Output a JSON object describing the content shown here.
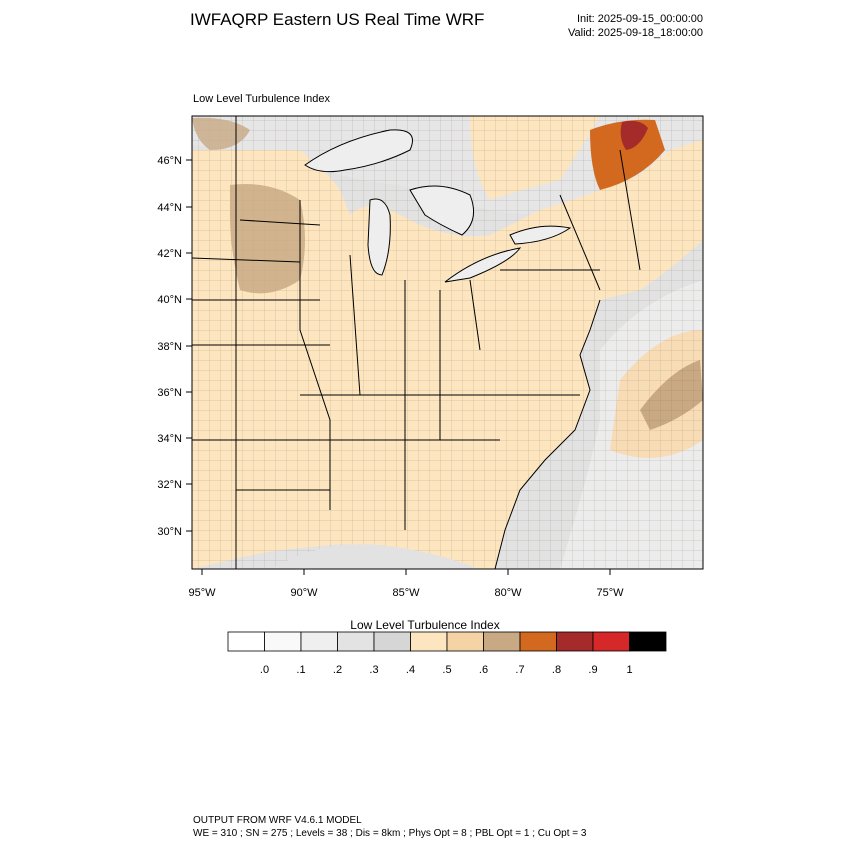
{
  "header": {
    "title": "IWFAQRP Eastern US Real Time WRF",
    "init": "Init: 2025-09-15_00:00:00",
    "valid": "Valid: 2025-09-18_18:00:00"
  },
  "plot_label": "Low Level Turbulence Index",
  "axes": {
    "lat_labels": [
      "46°N",
      "44°N",
      "42°N",
      "40°N",
      "38°N",
      "36°N",
      "34°N",
      "32°N",
      "30°N"
    ],
    "lon_labels": [
      "95°W",
      "90°W",
      "85°W",
      "80°W",
      "75°W"
    ]
  },
  "colorbar": {
    "title": "Low Level Turbulence Index",
    "colors": [
      "#ffffff",
      "#f9f9f9",
      "#efefef",
      "#e3e3e3",
      "#d6d6d6",
      "#fde6bf",
      "#f5d3a5",
      "#c9a984",
      "#d2691e",
      "#a52a2a",
      "#d62828",
      "#000000"
    ],
    "tick_labels": [
      ".0",
      ".1",
      ".2",
      ".3",
      ".4",
      ".5",
      ".6",
      ".7",
      ".8",
      ".9",
      "1"
    ]
  },
  "footer": {
    "line1": "OUTPUT FROM WRF V4.6.1 MODEL",
    "line2": "WE = 310 ; SN = 275 ; Levels = 38 ; Dis = 8km ; Phys Opt = 8 ; PBL Opt = 1 ; Cu Opt = 3"
  }
}
